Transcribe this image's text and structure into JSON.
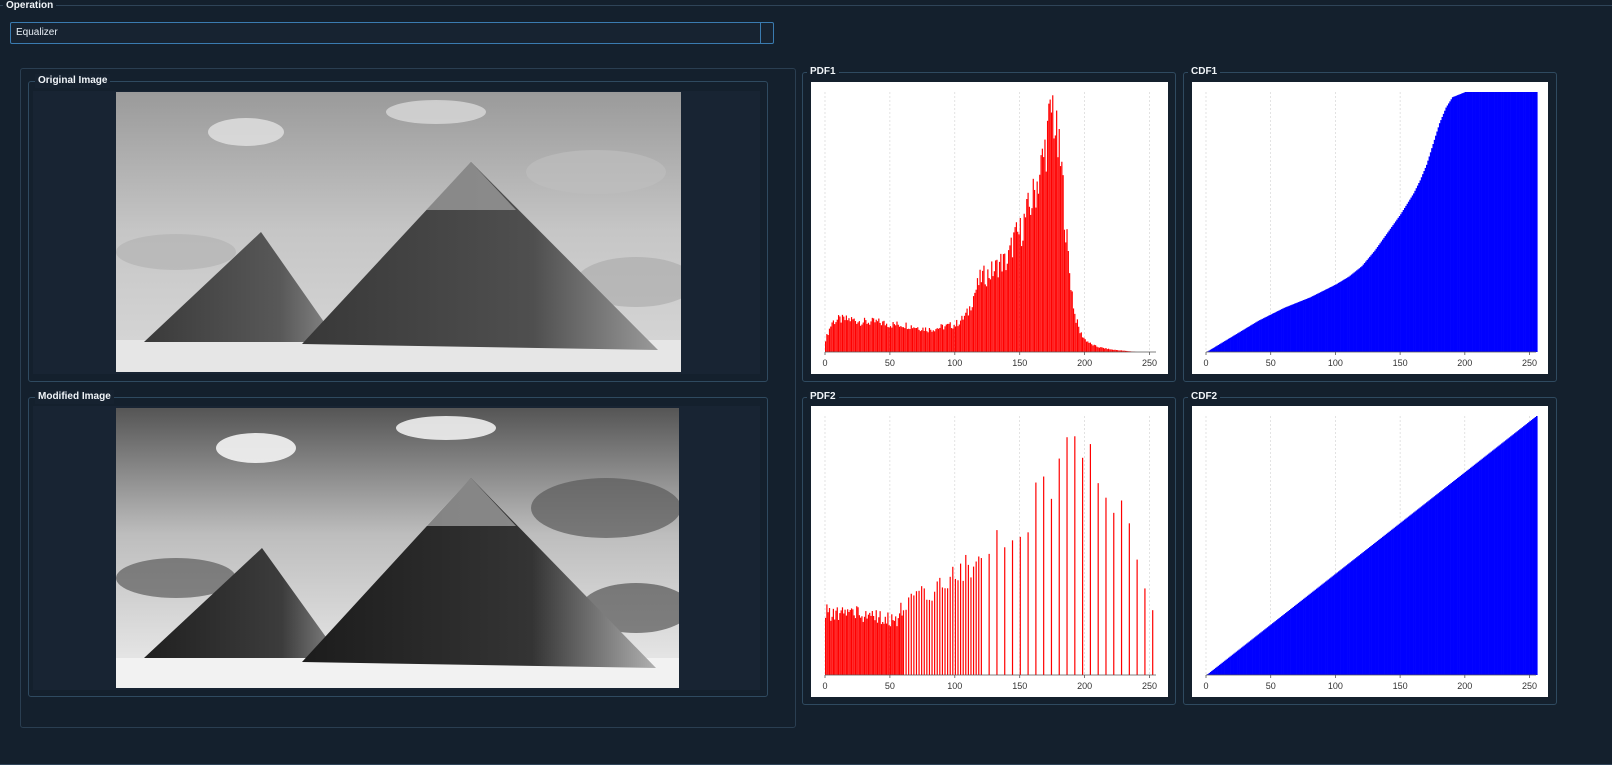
{
  "operation": {
    "legend": "Operation",
    "selected": "Equalizer"
  },
  "images": {
    "original_label": "Original Image",
    "modified_label": "Modified Image"
  },
  "charts": {
    "pdf1_label": "PDF1",
    "cdf1_label": "CDF1",
    "pdf2_label": "PDF2",
    "cdf2_label": "CDF2"
  },
  "colors": {
    "pdf": "#ff0000",
    "cdf": "#0000ff",
    "background": "#14202d",
    "accent": "#3a7bb0"
  },
  "chart_data": [
    {
      "id": "pdf1",
      "type": "bar",
      "title": "PDF1",
      "xlim": [
        0,
        255
      ],
      "ylim": [
        0,
        1
      ],
      "xticks": [
        0,
        50,
        100,
        150,
        200,
        250
      ],
      "grid": true,
      "x": [
        0,
        5,
        10,
        20,
        30,
        40,
        50,
        60,
        70,
        80,
        90,
        100,
        105,
        110,
        115,
        120,
        125,
        130,
        135,
        140,
        145,
        150,
        155,
        160,
        165,
        168,
        172,
        175,
        178,
        182,
        185,
        188,
        192,
        196,
        200,
        205,
        210,
        220,
        230,
        240,
        255
      ],
      "y": [
        0.05,
        0.12,
        0.13,
        0.13,
        0.12,
        0.12,
        0.11,
        0.11,
        0.1,
        0.09,
        0.1,
        0.11,
        0.13,
        0.16,
        0.24,
        0.3,
        0.31,
        0.33,
        0.36,
        0.36,
        0.45,
        0.48,
        0.55,
        0.62,
        0.72,
        0.78,
        0.9,
        0.99,
        0.85,
        0.72,
        0.5,
        0.32,
        0.15,
        0.08,
        0.05,
        0.03,
        0.02,
        0.01,
        0.005,
        0.0,
        0.0
      ]
    },
    {
      "id": "cdf1",
      "type": "area",
      "title": "CDF1",
      "xlim": [
        0,
        255
      ],
      "ylim": [
        0,
        1
      ],
      "xticks": [
        0,
        50,
        100,
        150,
        200,
        250
      ],
      "grid": true,
      "x": [
        0,
        20,
        40,
        60,
        80,
        100,
        110,
        120,
        130,
        140,
        150,
        160,
        165,
        170,
        175,
        180,
        185,
        190,
        195,
        200,
        210,
        220,
        255
      ],
      "y": [
        0.0,
        0.06,
        0.12,
        0.17,
        0.21,
        0.26,
        0.29,
        0.33,
        0.39,
        0.46,
        0.53,
        0.61,
        0.66,
        0.72,
        0.8,
        0.88,
        0.94,
        0.98,
        0.99,
        1.0,
        1.0,
        1.0,
        1.0
      ]
    },
    {
      "id": "pdf2",
      "type": "bar",
      "title": "PDF2",
      "xlim": [
        0,
        255
      ],
      "ylim": [
        0,
        1
      ],
      "xticks": [
        0,
        50,
        100,
        150,
        200,
        250
      ],
      "grid": true,
      "x": [
        0,
        10,
        20,
        30,
        40,
        50,
        55,
        60,
        70,
        80,
        90,
        100,
        110,
        120,
        130,
        140,
        150,
        160,
        170,
        180,
        185,
        190,
        195,
        200,
        210,
        220,
        230,
        240,
        250,
        255
      ],
      "y": [
        0.25,
        0.24,
        0.25,
        0.24,
        0.23,
        0.22,
        0.22,
        0.28,
        0.3,
        0.33,
        0.36,
        0.4,
        0.43,
        0.46,
        0.52,
        0.56,
        0.6,
        0.66,
        0.76,
        0.86,
        0.97,
        0.93,
        0.9,
        0.88,
        0.8,
        0.72,
        0.6,
        0.45,
        0.3,
        0.22
      ]
    },
    {
      "id": "cdf2",
      "type": "area",
      "title": "CDF2",
      "xlim": [
        0,
        255
      ],
      "ylim": [
        0,
        1
      ],
      "xticks": [
        0,
        50,
        100,
        150,
        200,
        250
      ],
      "grid": true,
      "x": [
        0,
        255
      ],
      "y": [
        0.0,
        1.0
      ]
    }
  ]
}
